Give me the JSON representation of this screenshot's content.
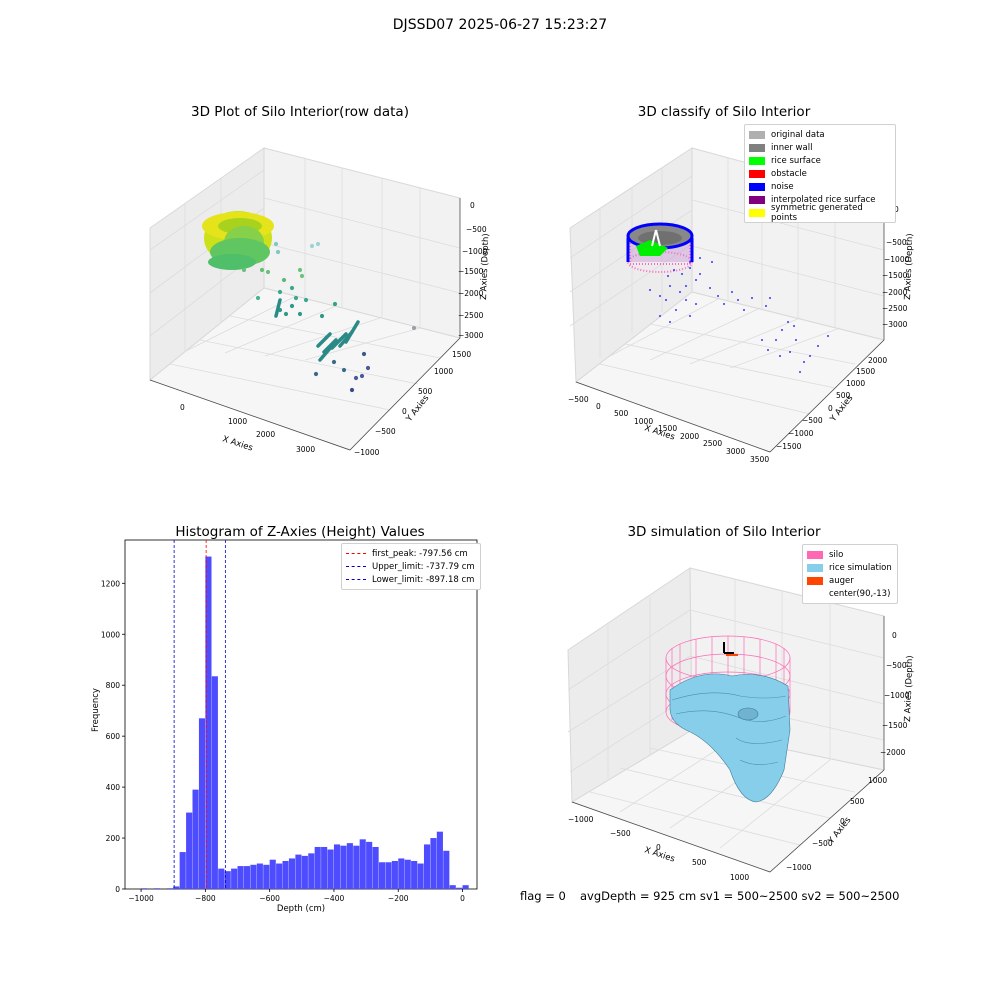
{
  "suptitle": "DJSSD07 2025-06-27 15:23:27",
  "plot1": {
    "title": "3D Plot of Silo Interior(row data)",
    "xlabel": "X Axies",
    "ylabel": "Y Axies",
    "zlabel": "Z Axies (Depth)",
    "xticks": [
      "0",
      "1000",
      "2000",
      "3000"
    ],
    "yticks": [
      "1500",
      "1000",
      "500",
      "0",
      "−500",
      "−1000"
    ],
    "zticks": [
      "0",
      "−500",
      "−1000",
      "−1500",
      "−2000",
      "−2500",
      "−3000"
    ]
  },
  "plot2": {
    "title": "3D classify of Silo Interior",
    "xlabel": "X Axies",
    "ylabel": "Y Axies",
    "zlabel": "Z Axies (Depth)",
    "xticks": [
      "−500",
      "0",
      "500",
      "1000",
      "1500",
      "2000",
      "2500",
      "3000",
      "3500"
    ],
    "yticks": [
      "2000",
      "1500",
      "1000",
      "500",
      "0",
      "−500",
      "−1000",
      "−1500"
    ],
    "zticks": [
      "0",
      "−500",
      "−1000",
      "−1500",
      "−2000",
      "−2500",
      "−3000"
    ],
    "legend": [
      {
        "label": "original data",
        "color": "#b0b0b0"
      },
      {
        "label": "inner wall",
        "color": "#808080"
      },
      {
        "label": "rice surface",
        "color": "#00ff00"
      },
      {
        "label": "obstacle",
        "color": "#ff0000"
      },
      {
        "label": "noise",
        "color": "#0000ff"
      },
      {
        "label": "interpolated rice surface",
        "color": "#800080"
      },
      {
        "label": "symmetric generated points",
        "color": "#ffff00"
      }
    ]
  },
  "chart_data": [
    {
      "type": "bar",
      "title": "Histogram of Z-Axies (Height) Values",
      "xlabel": "Depth (cm)",
      "ylabel": "Frequency",
      "xlim": [
        -1050,
        45
      ],
      "ylim": [
        0,
        1370
      ],
      "xticks": [
        -1000,
        -800,
        -600,
        -400,
        -200,
        0
      ],
      "yticks": [
        0,
        200,
        400,
        600,
        800,
        1000,
        1200
      ],
      "bin_start": -1000,
      "bin_width": 20,
      "values": [
        3,
        0,
        3,
        0,
        3,
        10,
        145,
        300,
        390,
        670,
        1305,
        835,
        80,
        70,
        80,
        90,
        90,
        95,
        100,
        95,
        115,
        100,
        110,
        120,
        135,
        130,
        140,
        165,
        165,
        155,
        175,
        170,
        180,
        170,
        195,
        185,
        165,
        105,
        105,
        110,
        120,
        115,
        110,
        100,
        175,
        200,
        225,
        150,
        15,
        5,
        15,
        0
      ],
      "bar_color": "#4d4dff",
      "vlines": [
        {
          "label": "first_peak: -797.56 cm",
          "x": -797.56,
          "color": "#ff0000"
        },
        {
          "label": "Upper_limit: -737.79 cm",
          "x": -737.79,
          "color": "#0000cc"
        },
        {
          "label": "Lower_limit: -897.18 cm",
          "x": -897.18,
          "color": "#0000cc"
        }
      ]
    }
  ],
  "plot4": {
    "title": "3D simulation of Silo Interior",
    "xlabel": "X Axies",
    "ylabel": "Y Axies",
    "zlabel": "Z Axies (Depth)",
    "xticks": [
      "−1000",
      "−500",
      "0",
      "500",
      "1000"
    ],
    "yticks": [
      "1000",
      "500",
      "0",
      "−500",
      "−1000"
    ],
    "zticks": [
      "0",
      "−500",
      "−1000",
      "−1500",
      "−2000"
    ],
    "legend": [
      {
        "label": "silo",
        "color": "#ff69b4"
      },
      {
        "label": "rice simulation",
        "color": "#87ceeb"
      },
      {
        "label": "auger",
        "color": "#ff4500"
      },
      {
        "label": "center(90,-13)",
        "color": "#ffffff"
      }
    ]
  },
  "footer": {
    "flag": "flag = 0",
    "stats": "avgDepth = 925 cm  sv1 = 500~2500  sv2 = 500~2500"
  }
}
